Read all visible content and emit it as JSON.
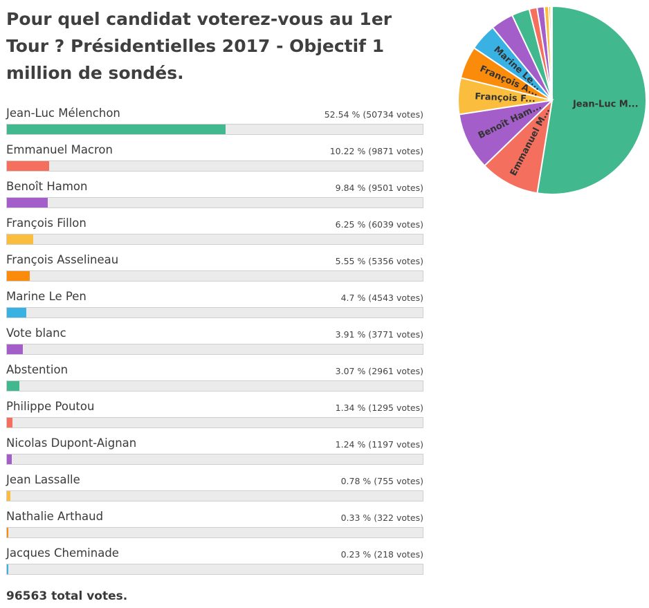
{
  "title": "Pour quel candidat voterez-vous au 1er Tour ? Présidentielles 2017 - Objectif 1 million de sondés.",
  "total_votes": "96563",
  "chart_data": [
    {
      "type": "bar",
      "orientation": "horizontal",
      "title": "Pour quel candidat voterez-vous au 1er Tour ? Présidentielles 2017 - Objectif 1 million de sondés.",
      "categories": [
        "Jean-Luc Mélenchon",
        "Emmanuel Macron",
        "Benoît Hamon",
        "François Fillon",
        "François Asselineau",
        "Marine Le Pen",
        "Vote blanc",
        "Abstention",
        "Philippe Poutou",
        "Nicolas Dupont-Aignan",
        "Jean Lassalle",
        "Nathalie Arthaud",
        "Jacques Cheminade"
      ],
      "values": [
        52.54,
        10.22,
        9.84,
        6.25,
        5.55,
        4.7,
        3.91,
        3.07,
        1.34,
        1.24,
        0.78,
        0.33,
        0.23
      ],
      "votes": [
        50734,
        9871,
        9501,
        6039,
        5356,
        4543,
        3771,
        2961,
        1295,
        1197,
        755,
        322,
        218
      ],
      "colors": [
        "#41b88e",
        "#f46f5e",
        "#a35ec9",
        "#fbbd3d",
        "#fb8b0a",
        "#3ab1e3",
        "#a35ec9",
        "#41b88e",
        "#f46f5e",
        "#a35ec9",
        "#fbbd3d",
        "#fb8b0a",
        "#3ab1e3"
      ],
      "xlim": [
        0,
        100
      ],
      "unit": "%"
    },
    {
      "type": "pie",
      "slices": [
        {
          "label": "Jean-Luc M...",
          "value": 52.54,
          "color": "#41b88e"
        },
        {
          "label": "Emmanuel M...",
          "value": 10.22,
          "color": "#f46f5e"
        },
        {
          "label": "Benoît Ham...",
          "value": 9.84,
          "color": "#a35ec9"
        },
        {
          "label": "François F...",
          "value": 6.25,
          "color": "#fbbd3d"
        },
        {
          "label": "François A...",
          "value": 5.55,
          "color": "#fb8b0a"
        },
        {
          "label": "Marine Le...",
          "value": 4.7,
          "color": "#3ab1e3"
        },
        {
          "label": "",
          "value": 3.91,
          "color": "#a35ec9"
        },
        {
          "label": "",
          "value": 3.07,
          "color": "#41b88e"
        },
        {
          "label": "",
          "value": 1.34,
          "color": "#f46f5e"
        },
        {
          "label": "",
          "value": 1.24,
          "color": "#a35ec9"
        },
        {
          "label": "",
          "value": 0.78,
          "color": "#fbbd3d"
        },
        {
          "label": "",
          "value": 0.33,
          "color": "#fb8b0a"
        },
        {
          "label": "",
          "value": 0.23,
          "color": "#3ab1e3"
        }
      ]
    }
  ]
}
